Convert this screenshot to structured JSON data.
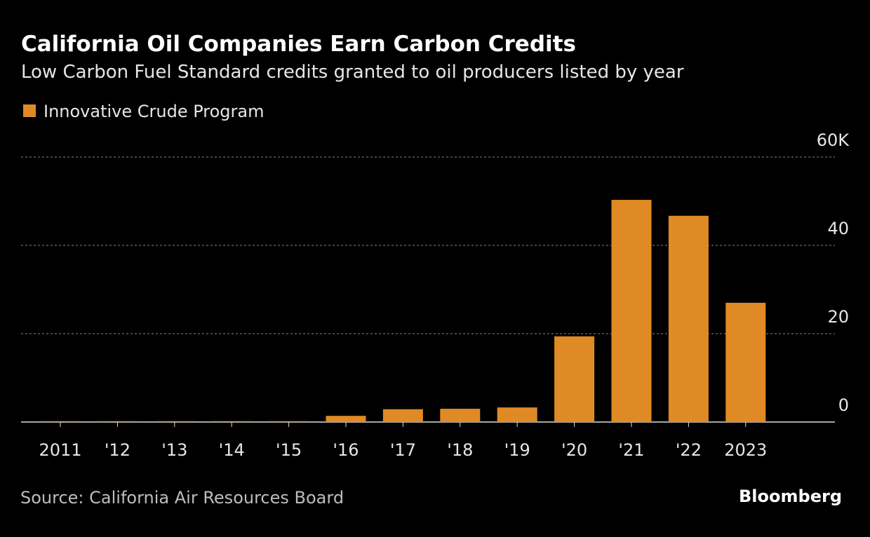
{
  "chart_data": {
    "type": "bar",
    "title": "California Oil Companies Earn Carbon Credits",
    "subtitle": "Low Carbon Fuel Standard credits granted to oil producers listed by year",
    "source": "Source: California Air Resources Board",
    "brand": "Bloomberg",
    "categories": [
      "2011",
      "'12",
      "'13",
      "'14",
      "'15",
      "'16",
      "'17",
      "'18",
      "'19",
      "'20",
      "'21",
      "'22",
      "2023"
    ],
    "series": [
      {
        "name": "Innovative Crude Program",
        "color": "#e08a26",
        "values": [
          0.2,
          0.2,
          0.2,
          0.2,
          0.2,
          1.4,
          2.9,
          3.0,
          3.3,
          19.4,
          50.3,
          46.7,
          27.0
        ]
      }
    ],
    "ylim": [
      0,
      60
    ],
    "yticks": [
      0,
      20,
      40,
      {
        "value": 60,
        "label": "60K"
      }
    ],
    "grid": true
  }
}
